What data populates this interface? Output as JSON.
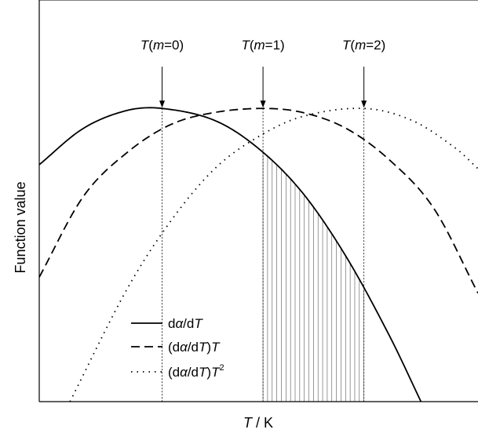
{
  "chart_data": {
    "type": "line",
    "xlabel": "T / K",
    "ylabel": "Function value",
    "xlim": [
      0,
      1
    ],
    "ylim": [
      0,
      1
    ],
    "x_ticks_shown": false,
    "y_ticks_shown": false,
    "grid": false,
    "legend_position": "bottom-left",
    "series": [
      {
        "name": "dα/dT",
        "line_style": "solid",
        "peak": {
          "x": 0.28,
          "y": 0.73
        },
        "points": [
          [
            0,
            0.59
          ],
          [
            0.1,
            0.68
          ],
          [
            0.2,
            0.725
          ],
          [
            0.28,
            0.73
          ],
          [
            0.4,
            0.7
          ],
          [
            0.5,
            0.63
          ],
          [
            0.6,
            0.52
          ],
          [
            0.7,
            0.36
          ],
          [
            0.8,
            0.16
          ],
          [
            0.87,
            0.0
          ]
        ]
      },
      {
        "name": "(dα/dT)T",
        "line_style": "dashed",
        "peak": {
          "x": 0.51,
          "y": 0.73
        },
        "points": [
          [
            0,
            0.31
          ],
          [
            0.1,
            0.51
          ],
          [
            0.2,
            0.62
          ],
          [
            0.3,
            0.69
          ],
          [
            0.4,
            0.72
          ],
          [
            0.51,
            0.73
          ],
          [
            0.6,
            0.72
          ],
          [
            0.7,
            0.68
          ],
          [
            0.8,
            0.6
          ],
          [
            0.9,
            0.48
          ],
          [
            1.0,
            0.27
          ]
        ]
      },
      {
        "name": "(dα/dT)T²",
        "line_style": "dotted",
        "peak": {
          "x": 0.74,
          "y": 0.73
        },
        "points": [
          [
            0.07,
            0.0
          ],
          [
            0.2,
            0.28
          ],
          [
            0.3,
            0.45
          ],
          [
            0.4,
            0.58
          ],
          [
            0.5,
            0.66
          ],
          [
            0.6,
            0.71
          ],
          [
            0.74,
            0.73
          ],
          [
            0.85,
            0.7
          ],
          [
            0.95,
            0.63
          ],
          [
            1.0,
            0.58
          ]
        ]
      }
    ],
    "markers": [
      {
        "label": "T(m=0)",
        "x": 0.28
      },
      {
        "label": "T(m=1)",
        "x": 0.51
      },
      {
        "label": "T(m=2)",
        "x": 0.74
      }
    ],
    "shaded_region": {
      "x_from": 0.51,
      "x_to": 0.74,
      "under_series": "dα/dT",
      "style": "vertical hatching"
    }
  }
}
